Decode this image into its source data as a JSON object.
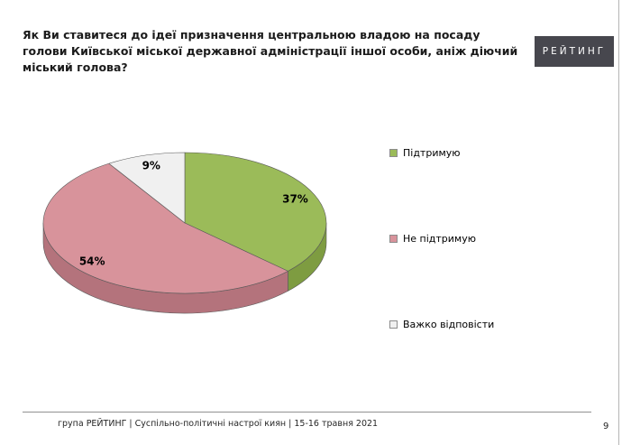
{
  "title": "Як Ви ставитеся до ідеї призначення центральною владою на посаду голови Київської міської державної адміністрації іншої особи, аніж діючий міський голова?",
  "logo_text": "РЕЙТИНГ",
  "footer_text": "група РЕЙТИНГ  | Суспільно-політичні настрої киян  | 15-16 травня 2021",
  "page_number": "9",
  "chart_data": {
    "type": "pie",
    "style": "3d",
    "title": "",
    "labels": [
      "Підтримую",
      "Не підтримую",
      "Важко відповісти"
    ],
    "values": [
      37,
      54,
      9
    ],
    "value_labels": [
      "37%",
      "54%",
      "9%"
    ],
    "colors": [
      "#9BBB59",
      "#D8939B",
      "#F0F0F0"
    ],
    "side_colors": [
      "#7E9C41",
      "#B4737C",
      "#CFCFCF"
    ],
    "start_angle_deg": 0,
    "direction": "clockwise",
    "legend_position": "right"
  }
}
